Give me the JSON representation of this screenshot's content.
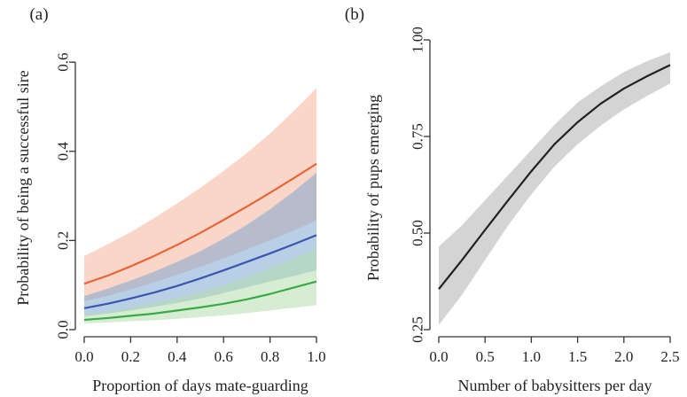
{
  "chart_data": [
    {
      "type": "line",
      "panel_label": "(a)",
      "title": "",
      "xlabel": "Proportion of days mate-guarding",
      "ylabel": "Probability of being a successful sire",
      "xlim": [
        0,
        1
      ],
      "ylim": [
        0,
        0.65
      ],
      "xticks": [
        0.0,
        0.2,
        0.4,
        0.6,
        0.8,
        1.0
      ],
      "xtick_labels": [
        "0.0",
        "0.2",
        "0.4",
        "0.6",
        "0.8",
        "1.0"
      ],
      "yticks": [
        0.0,
        0.2,
        0.4,
        0.6
      ],
      "ytick_labels": [
        "0.0",
        "0.2",
        "0.4",
        "0.6"
      ],
      "grid": false,
      "x": [
        0.0,
        0.1,
        0.2,
        0.3,
        0.4,
        0.5,
        0.6,
        0.7,
        0.8,
        0.9,
        1.0
      ],
      "series": [
        {
          "color": "#e8653a",
          "band_color": "#f5b49a",
          "values": [
            0.103,
            0.121,
            0.142,
            0.165,
            0.19,
            0.217,
            0.246,
            0.276,
            0.307,
            0.339,
            0.372
          ],
          "lower": [
            0.063,
            0.076,
            0.09,
            0.106,
            0.123,
            0.141,
            0.16,
            0.18,
            0.2,
            0.222,
            0.245
          ],
          "upper": [
            0.165,
            0.191,
            0.219,
            0.25,
            0.283,
            0.318,
            0.356,
            0.396,
            0.44,
            0.489,
            0.542
          ]
        },
        {
          "color": "#3b55b0",
          "band_color": "#7fa7cf",
          "values": [
            0.048,
            0.058,
            0.07,
            0.083,
            0.098,
            0.115,
            0.133,
            0.152,
            0.171,
            0.191,
            0.212
          ],
          "lower": [
            0.03,
            0.036,
            0.043,
            0.051,
            0.06,
            0.07,
            0.082,
            0.095,
            0.108,
            0.12,
            0.133
          ],
          "upper": [
            0.075,
            0.092,
            0.11,
            0.13,
            0.152,
            0.176,
            0.204,
            0.235,
            0.27,
            0.309,
            0.352
          ]
        },
        {
          "color": "#3aaa47",
          "band_color": "#b4deb0",
          "values": [
            0.022,
            0.026,
            0.031,
            0.036,
            0.043,
            0.05,
            0.058,
            0.068,
            0.08,
            0.094,
            0.108
          ],
          "lower": [
            0.014,
            0.016,
            0.019,
            0.021,
            0.024,
            0.028,
            0.032,
            0.037,
            0.043,
            0.049,
            0.055
          ],
          "upper": [
            0.034,
            0.041,
            0.05,
            0.06,
            0.072,
            0.085,
            0.1,
            0.118,
            0.138,
            0.16,
            0.183
          ]
        }
      ]
    },
    {
      "type": "line",
      "panel_label": "(b)",
      "title": "",
      "xlabel": "Number of babysitters per day",
      "ylabel": "Probability of pups emerging",
      "xlim": [
        0,
        2.5
      ],
      "ylim": [
        0.25,
        1.0
      ],
      "xticks": [
        0.0,
        0.5,
        1.0,
        1.5,
        2.0,
        2.5
      ],
      "xtick_labels": [
        "0.0",
        "0.5",
        "1.0",
        "1.5",
        "2.0",
        "2.5"
      ],
      "yticks": [
        0.25,
        0.5,
        0.75,
        1.0
      ],
      "ytick_labels": [
        "0.25",
        "0.50",
        "0.75",
        "1.00"
      ],
      "grid": false,
      "x": [
        0.0,
        0.25,
        0.5,
        0.75,
        1.0,
        1.25,
        1.5,
        1.75,
        2.0,
        2.25,
        2.5
      ],
      "series": [
        {
          "color": "#222222",
          "band_color": "#cfcfcf",
          "values": [
            0.355,
            0.43,
            0.508,
            0.585,
            0.66,
            0.73,
            0.787,
            0.835,
            0.874,
            0.906,
            0.935
          ],
          "lower": [
            0.262,
            0.34,
            0.43,
            0.52,
            0.6,
            0.672,
            0.73,
            0.778,
            0.82,
            0.855,
            0.887
          ],
          "upper": [
            0.465,
            0.52,
            0.585,
            0.65,
            0.715,
            0.78,
            0.838,
            0.88,
            0.917,
            0.945,
            0.968
          ]
        }
      ]
    }
  ]
}
